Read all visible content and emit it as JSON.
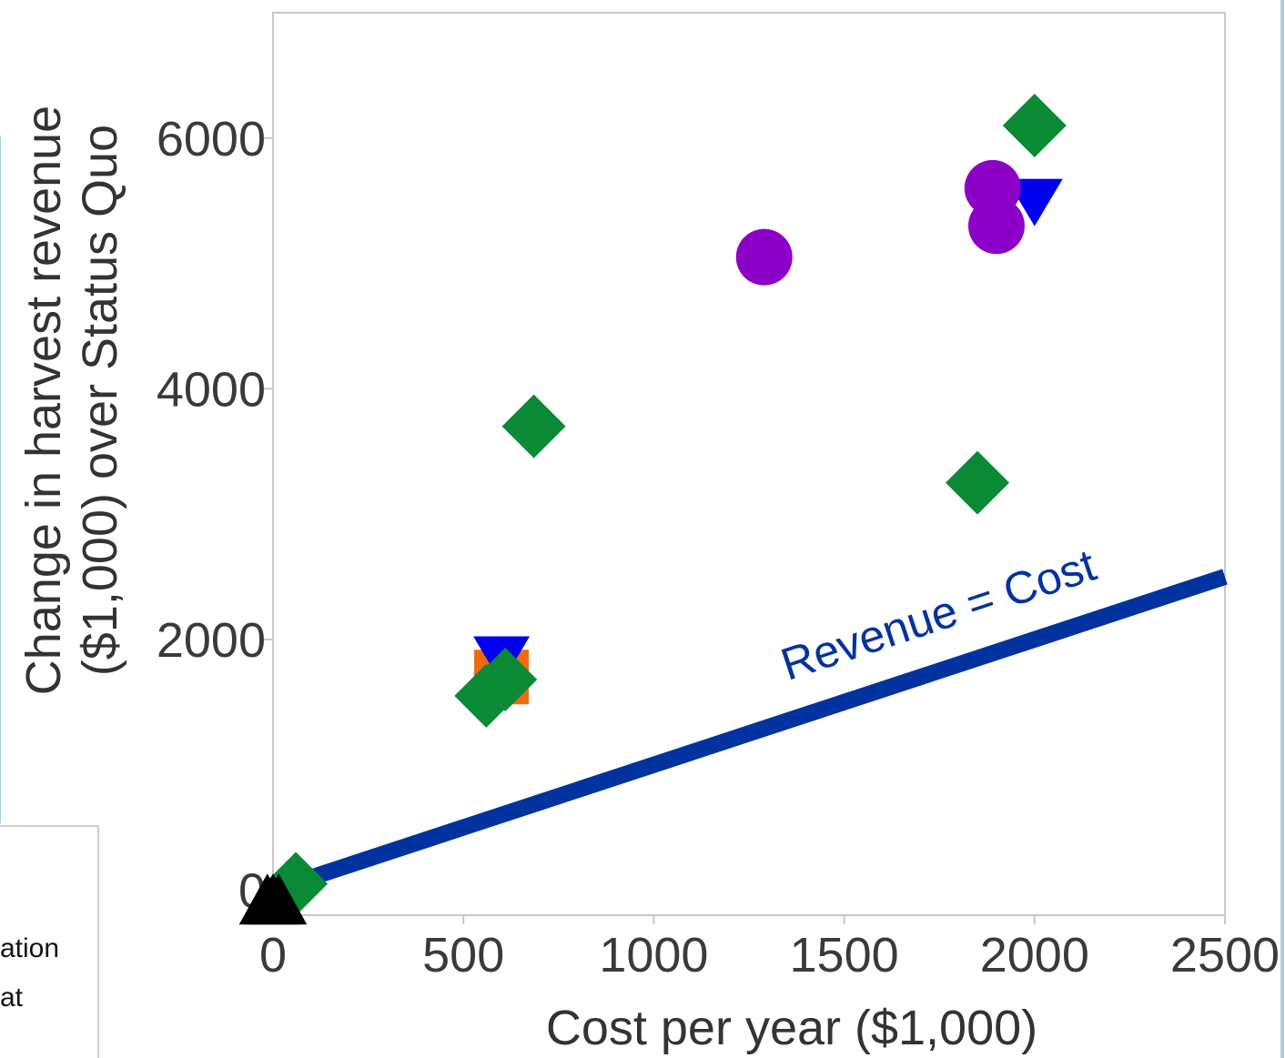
{
  "chart_data": {
    "type": "scatter",
    "title": "",
    "xlabel": "Cost per year ($1,000)",
    "ylabel_line1": "Change in harvest revenue",
    "ylabel_line2": "($1,000) over Status Quo",
    "xlim": [
      0,
      2500
    ],
    "ylim": [
      -200,
      7000
    ],
    "x_ticks": [
      0,
      500,
      1000,
      1500,
      2000,
      2500
    ],
    "y_ticks": [
      0,
      2000,
      4000,
      6000
    ],
    "x_tick_labels": [
      "0",
      "500",
      "1000",
      "1500",
      "2000",
      "2500"
    ],
    "y_tick_labels": [
      "0",
      "2000",
      "4000",
      "6000"
    ],
    "grid": false,
    "series": [
      {
        "marker": "triangle-down",
        "color": "#0000ee",
        "points": [
          {
            "x": 600,
            "y": 1850
          },
          {
            "x": 2000,
            "y": 5500
          }
        ]
      },
      {
        "marker": "square",
        "color": "#f26a10",
        "points": [
          {
            "x": 600,
            "y": 1700
          }
        ]
      },
      {
        "marker": "diamond",
        "color": "#0a8a35",
        "points": [
          {
            "x": 2000,
            "y": 6100
          },
          {
            "x": 685,
            "y": 3700
          },
          {
            "x": 1850,
            "y": 3250
          },
          {
            "x": 560,
            "y": 1550
          },
          {
            "x": 610,
            "y": 1680
          },
          {
            "x": 60,
            "y": 50
          }
        ]
      },
      {
        "marker": "circle",
        "color": "#8c00c8",
        "points": [
          {
            "x": 1290,
            "y": 5050
          },
          {
            "x": 1890,
            "y": 5600
          },
          {
            "x": 1900,
            "y": 5300
          }
        ]
      },
      {
        "marker": "triangle-up",
        "color": "#000000",
        "points": [
          {
            "x": -15,
            "y": -100
          },
          {
            "x": 0,
            "y": -100
          },
          {
            "x": 15,
            "y": -100
          }
        ]
      }
    ],
    "reference_line": {
      "label": "Revenue = Cost",
      "color": "#0033a0",
      "from": {
        "x": 0,
        "y": 0
      },
      "to": {
        "x": 2500,
        "y": 2500
      }
    },
    "legend_partial": [
      "ation",
      "at"
    ]
  }
}
